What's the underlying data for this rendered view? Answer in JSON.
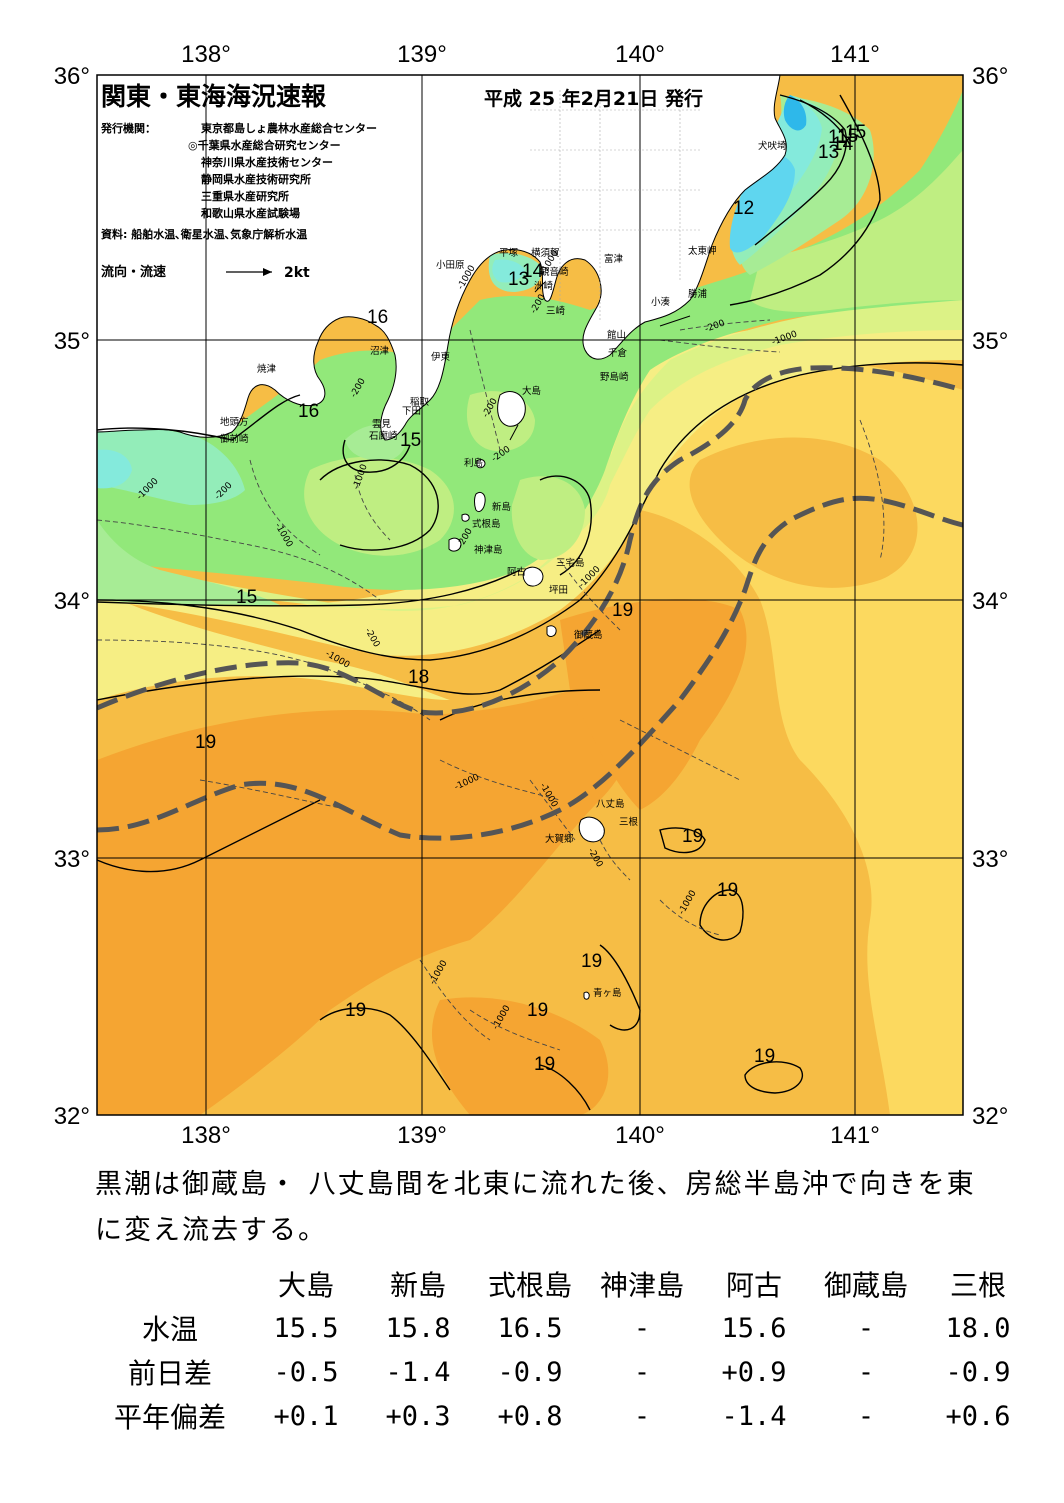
{
  "header": {
    "title": "関東・東海海況速報",
    "issue_date": "平成 25 年2月21日 発行",
    "issuer_label": "発行機関：",
    "issuers": [
      "東京都島しょ農林水産総合センター",
      "◎千葉県水産総合研究センター",
      "神奈川県水産技術センター",
      "静岡県水産技術研究所",
      "三重県水産研究所",
      "和歌山県水産試験場"
    ],
    "source": "資料: 船舶水温､衛星水温､気象庁解析水温",
    "flow_legend_label": "流向・流速",
    "flow_legend_value": "2kt"
  },
  "map": {
    "lon_labels": [
      "138°",
      "139°",
      "140°",
      "141°"
    ],
    "lat_labels": [
      "36°",
      "35°",
      "34°",
      "33°",
      "32°"
    ],
    "colors": {
      "t11": "#2eb8ea",
      "t12": "#5fd6ef",
      "t13": "#84eadc",
      "t14": "#93edb9",
      "t15": "#a7ec95",
      "t16": "#92e87a",
      "t165": "#bfee82",
      "t17": "#dcf286",
      "t18": "#f6ee84",
      "t185": "#fcd95f",
      "t19": "#f6bd45",
      "t195": "#f5a532",
      "land": "#ffffff",
      "kuroshio_axis": "#555555"
    },
    "isotherm_labels": [
      "15",
      "16",
      "16",
      "15",
      "15",
      "14",
      "13",
      "11",
      "13",
      "14",
      "15",
      "12",
      "19",
      "18",
      "19",
      "19",
      "19",
      "19",
      "19",
      "19",
      "19"
    ],
    "depth_labels": [
      "-1000",
      "-200",
      "-200",
      "-1000",
      "-1000",
      "-200",
      "-200",
      "-1000",
      "-200",
      "-1000",
      "-200",
      "-1000",
      "-1000",
      "-200",
      "-1000",
      "-1000",
      "-1000",
      "-1000",
      "-1000",
      "-200",
      "-200",
      "-1000",
      "-200",
      "-1000"
    ],
    "place_labels": [
      "小田原",
      "平塚",
      "横須賀",
      "観音崎",
      "洲崎",
      "三崎",
      "富津",
      "犬吠埼",
      "太東岬",
      "勝浦",
      "小湊",
      "館山",
      "千倉",
      "野島崎",
      "沼津",
      "焼津",
      "伊東",
      "稲取",
      "下田",
      "雲見",
      "石廊崎",
      "地頭方",
      "御前崎",
      "大島",
      "利島",
      "新島",
      "式根島",
      "神津島",
      "阿古",
      "三宅島",
      "坪田",
      "御蔵島",
      "八丈島",
      "三根",
      "大賀郷",
      "青ヶ島"
    ]
  },
  "summary": "黒潮は御蔵島・ 八丈島間を北東に流れた後、房総半島沖で向きを東に変え流去する。",
  "table": {
    "columns": [
      "大島",
      "新島",
      "式根島",
      "神津島",
      "阿古",
      "御蔵島",
      "三根"
    ],
    "rows": [
      {
        "label": "水温",
        "values": [
          "15.5",
          "15.8",
          "16.5",
          "-",
          "15.6",
          "-",
          "18.0"
        ]
      },
      {
        "label": "前日差",
        "values": [
          "-0.5",
          "-1.4",
          "-0.9",
          "-",
          "+0.9",
          "-",
          "-0.9"
        ]
      },
      {
        "label": "平年偏差",
        "values": [
          "+0.1",
          "+0.3",
          "+0.8",
          "-",
          "-1.4",
          "-",
          "+0.6"
        ]
      }
    ]
  }
}
